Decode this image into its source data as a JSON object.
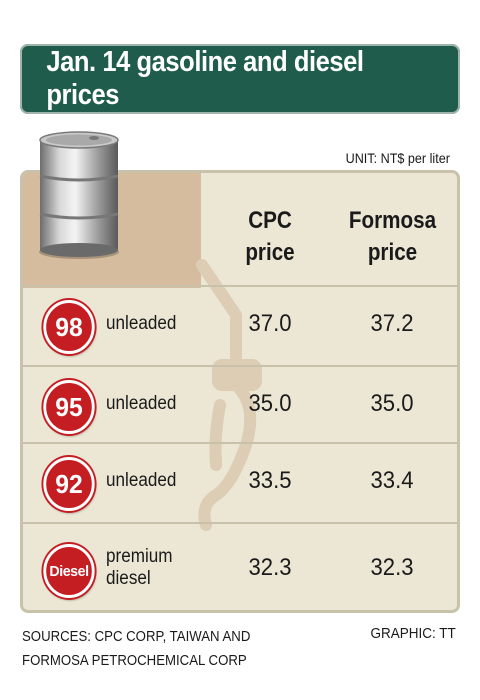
{
  "title": "Jan. 14 gasoline and diesel prices",
  "unit": "UNIT: NT$ per liter",
  "columns": [
    {
      "line1": "CPC",
      "line2": "price"
    },
    {
      "line1": "Formosa",
      "line2": "price"
    }
  ],
  "chart_data": {
    "type": "table",
    "title": "Jan. 14 gasoline and diesel prices",
    "unit": "UNIT: NT$ per liter",
    "columns": [
      "CPC price",
      "Formosa price"
    ],
    "rows": [
      {
        "badge": "98",
        "label": [
          "unleaded"
        ],
        "values": [
          "37.0",
          "37.2"
        ]
      },
      {
        "badge": "95",
        "label": [
          "unleaded"
        ],
        "values": [
          "35.0",
          "35.0"
        ]
      },
      {
        "badge": "92",
        "label": [
          "unleaded"
        ],
        "values": [
          "33.5",
          "33.4"
        ]
      },
      {
        "badge": "Diesel",
        "label": [
          "premium",
          "diesel"
        ],
        "values": [
          "32.3",
          "32.3"
        ]
      }
    ]
  },
  "footer": {
    "sources_line1": "SOURCES: CPC CORP, TAIWAN AND",
    "sources_line2": "FORMOSA PETROCHEMICAL CORP",
    "credit": "GRAPHIC: TT"
  },
  "colors": {
    "title_bg": "#1f5c4b",
    "panel_bg": "#ece7d5",
    "tan": "#d5bc9e",
    "badge_red": "#c41e22"
  },
  "icons": [
    "oil-barrel-icon",
    "fuel-nozzle-icon"
  ]
}
